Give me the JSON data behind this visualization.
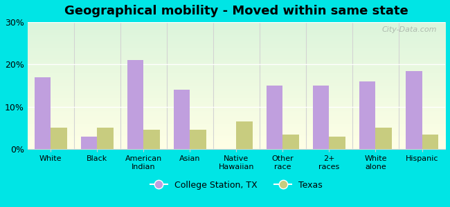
{
  "title": "Geographical mobility - Moved within same state",
  "categories": [
    "White",
    "Black",
    "American\nIndian",
    "Asian",
    "Native\nHawaiian",
    "Other\nrace",
    "2+\nraces",
    "White\nalone",
    "Hispanic"
  ],
  "college_station": [
    17.0,
    3.0,
    21.0,
    14.0,
    0.0,
    15.0,
    15.0,
    16.0,
    18.5
  ],
  "texas": [
    5.0,
    5.0,
    4.5,
    4.5,
    6.5,
    3.5,
    3.0,
    5.0,
    3.5
  ],
  "college_color": "#c09fde",
  "texas_color": "#c8cc7f",
  "bg_color": "#00e5e5",
  "ylim": [
    0,
    30
  ],
  "yticks": [
    0,
    10,
    20,
    30
  ],
  "ytick_labels": [
    "0%",
    "10%",
    "20%",
    "30%"
  ],
  "legend_college": "College Station, TX",
  "legend_texas": "Texas",
  "bar_width": 0.35,
  "watermark": "City-Data.com"
}
